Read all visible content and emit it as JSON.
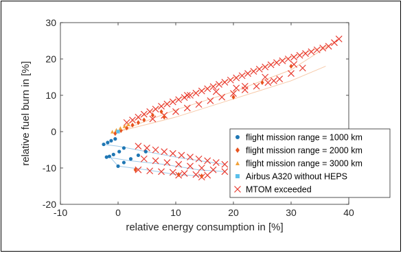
{
  "chart_data": {
    "type": "scatter",
    "title": "",
    "xlabel": "relative energy consumption in [%]",
    "ylabel": "relative fuel burn in [%]",
    "xlim": [
      -10,
      40
    ],
    "ylim": [
      -20,
      30
    ],
    "xticks": [
      "-10",
      "0",
      "10",
      "20",
      "30",
      "40"
    ],
    "yticks": [
      "-20",
      "-10",
      "0",
      "10",
      "20",
      "30"
    ],
    "grid": false,
    "legend_position": "lower-right",
    "colors": {
      "range_1000": "#1f77b4",
      "range_2000": "#e8531f",
      "range_3000": "#f2a23a",
      "a320": "#5bc0eb",
      "mtom": "#e8392e",
      "band_blue": "#9ec9e8",
      "band_orange": "#f7c9a8"
    },
    "legend": [
      {
        "label": "flight mission range = 1000 km",
        "marker": "circle",
        "color": "#1f77b4"
      },
      {
        "label": "flight mission range = 2000 km",
        "marker": "diamond",
        "color": "#e8531f"
      },
      {
        "label": "flight mission range = 3000 km",
        "marker": "triangle",
        "color": "#f2a23a"
      },
      {
        "label": "Airbus A320 without HEPS",
        "marker": "square",
        "color": "#5bc0eb"
      },
      {
        "label": "MTOM exceeded",
        "marker": "x",
        "color": "#e8392e"
      }
    ],
    "series": [
      {
        "name": "flight mission range = 1000 km",
        "x": [
          -2.5,
          -1.8,
          -1.2,
          -0.5,
          -2.0,
          -1.5,
          -0.8,
          0.2,
          1.0,
          0.0,
          1.0,
          2.2,
          3.5,
          4.8
        ],
        "y": [
          -3.5,
          -3.0,
          -2.5,
          -2.0,
          -7.0,
          -6.8,
          -6.3,
          -5.5,
          -4.5,
          -9.5,
          -8.5,
          -7.5,
          -6.5,
          -5.5
        ]
      },
      {
        "name": "flight mission range = 2000 km",
        "x": [
          -0.5,
          0.5,
          1.5,
          2.5,
          3.5,
          4.5,
          6.0,
          7.5,
          3.0,
          10.5,
          14.5,
          20.0,
          25.0,
          30.0,
          8.0
        ],
        "y": [
          -0.5,
          0.3,
          1.0,
          1.8,
          2.5,
          3.2,
          4.5,
          5.5,
          -10.5,
          -11.8,
          -12.2,
          9.5,
          13.5,
          18.0,
          4.0
        ]
      },
      {
        "name": "flight mission range = 3000 km",
        "x": [
          -1.0,
          -0.3,
          0.4,
          1.1,
          1.8
        ],
        "y": [
          0.0,
          0.5,
          1.0,
          1.5,
          2.0
        ]
      },
      {
        "name": "Airbus A320 without HEPS",
        "x": [
          0
        ],
        "y": [
          0
        ]
      },
      {
        "name": "MTOM exceeded",
        "x": [
          1.5,
          2.5,
          3.5,
          4.5,
          5.5,
          6.5,
          7.5,
          8.5,
          9.5,
          10.5,
          11.5,
          12.5,
          13.5,
          14.5,
          15.5,
          16.5,
          17.5,
          18.5,
          19.5,
          20.5,
          21.5,
          22.5,
          23.5,
          24.5,
          25.5,
          26.5,
          27.5,
          28.5,
          29.5,
          30.5,
          31.5,
          32.5,
          33.5,
          34.5,
          35.5,
          36.5,
          37.5,
          38.3,
          6.0,
          8.0,
          10.0,
          12.0,
          14.0,
          16.0,
          18.0,
          20.0,
          22.0,
          24.0,
          26.0,
          28.0,
          30.0,
          32.0,
          3.5,
          5.0,
          6.5,
          8.0,
          9.5,
          11.0,
          12.5,
          14.0,
          15.5,
          17.0,
          18.5,
          4.5,
          6.5,
          8.5,
          10.5,
          12.5,
          14.5,
          16.5,
          18.5,
          3.5,
          5.5,
          7.5,
          9.5,
          11.5,
          13.5,
          15.5,
          10.5,
          14.5,
          20.5,
          25.5,
          30.5,
          12.0,
          17.0,
          22.0,
          27.0
        ],
        "y": [
          2.5,
          3.2,
          4.0,
          4.8,
          5.5,
          6.2,
          7.0,
          7.6,
          8.2,
          8.8,
          9.4,
          10.0,
          10.6,
          11.2,
          11.8,
          12.4,
          13.0,
          13.6,
          14.2,
          14.8,
          15.4,
          16.0,
          16.6,
          17.2,
          17.8,
          18.4,
          19.0,
          19.5,
          20.0,
          20.5,
          21.0,
          21.5,
          22.0,
          22.5,
          23.0,
          23.5,
          24.5,
          25.5,
          3.5,
          4.5,
          5.5,
          6.5,
          7.5,
          8.5,
          9.5,
          10.5,
          11.5,
          12.5,
          13.5,
          14.5,
          16.0,
          17.5,
          -4.0,
          -4.5,
          -5.0,
          -5.5,
          -6.0,
          -6.5,
          -7.0,
          -7.5,
          -8.0,
          -8.5,
          -9.0,
          -7.5,
          -8.0,
          -8.5,
          -9.0,
          -9.5,
          -10.0,
          -10.5,
          -11.0,
          -10.5,
          -10.8,
          -11.0,
          -11.2,
          -11.5,
          -11.8,
          -12.0,
          -12.0,
          -12.5,
          12.0,
          15.0,
          18.5,
          10.0,
          11.0,
          12.5,
          14.0
        ]
      }
    ]
  }
}
